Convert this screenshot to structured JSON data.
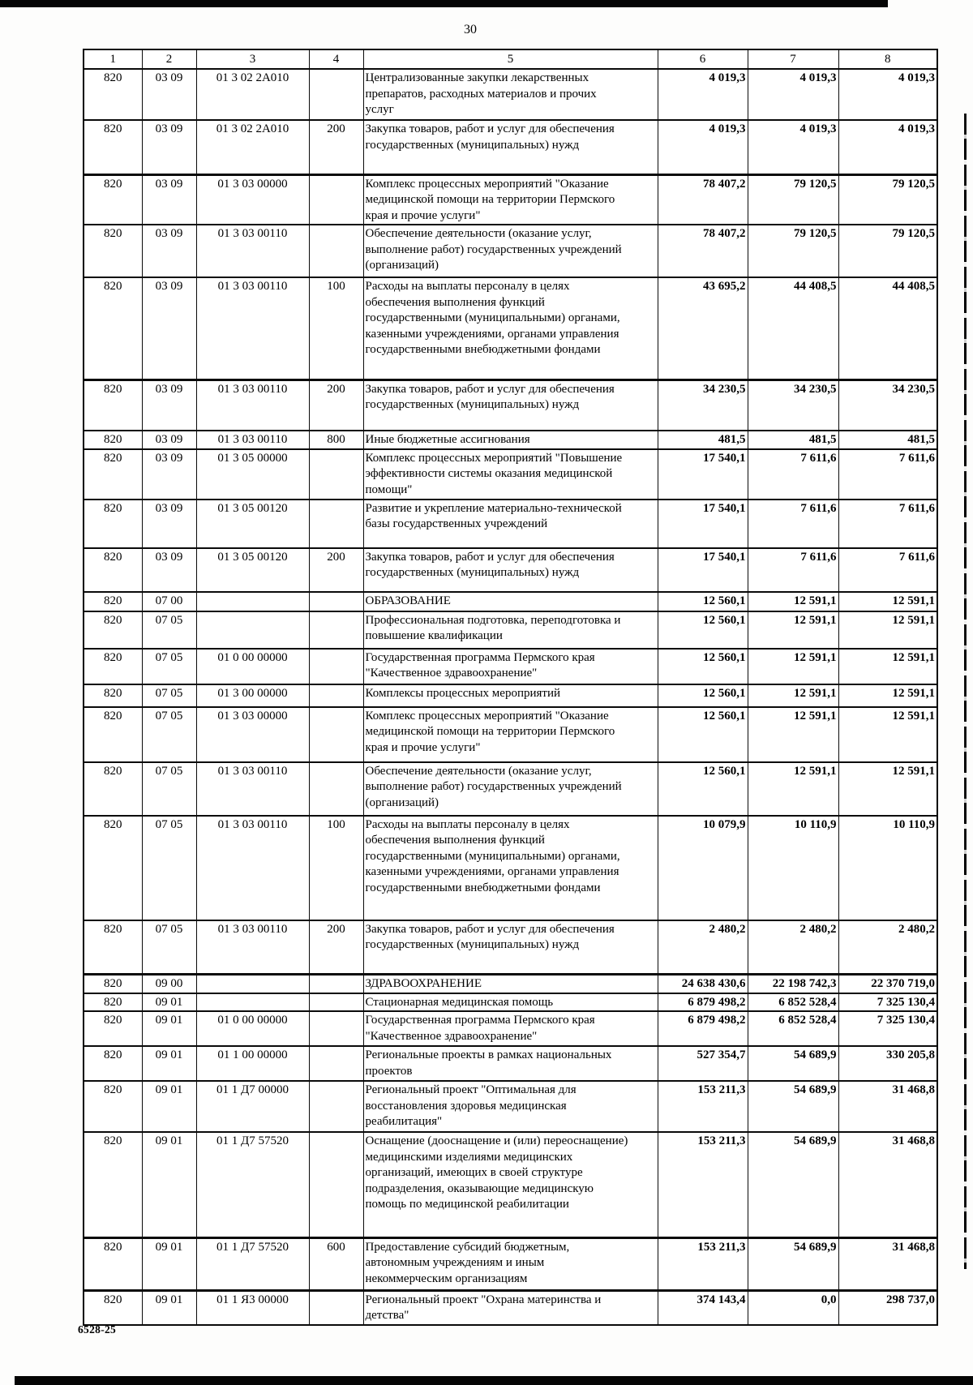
{
  "page": {
    "number": "30",
    "footer_code": "6528-25"
  },
  "table": {
    "headers": [
      "1",
      "2",
      "3",
      "4",
      "5",
      "6",
      "7",
      "8"
    ],
    "rows": [
      [
        "820",
        "03 09",
        "01 3 02 2А010",
        "",
        "Централизованные закупки лекарственных\nпрепаратов, расходных материалов и прочих\nуслуг",
        "4 019,3",
        "4 019,3",
        "4 019,3"
      ],
      [
        "820",
        "03 09",
        "01 3 02 2А010",
        "200",
        "Закупка товаров, работ и услуг для обеспечения\nгосударственных (муниципальных) нужд",
        "4 019,3",
        "4 019,3",
        "4 019,3"
      ],
      [
        "820",
        "03 09",
        "01 3 03 00000",
        "",
        "Комплекс процессных мероприятий \"Оказание\nмедицинской помощи на территории Пермского\nкрая и прочие услуги\"",
        "78 407,2",
        "79 120,5",
        "79 120,5"
      ],
      [
        "820",
        "03 09",
        "01 3 03 00110",
        "",
        "Обеспечение деятельности (оказание услуг,\nвыполнение работ) государственных учреждений\n(организаций)",
        "78 407,2",
        "79 120,5",
        "79 120,5"
      ],
      [
        "820",
        "03 09",
        "01 3 03 00110",
        "100",
        "Расходы на выплаты персоналу в целях\nобеспечения выполнения функций\nгосударственными (муниципальными) органами,\nказенными учреждениями, органами управления\nгосударственными внебюджетными фондами",
        "43 695,2",
        "44 408,5",
        "44 408,5"
      ],
      [
        "820",
        "03 09",
        "01 3 03 00110",
        "200",
        "Закупка товаров, работ и услуг для обеспечения\nгосударственных (муниципальных) нужд",
        "34 230,5",
        "34 230,5",
        "34 230,5"
      ],
      [
        "820",
        "03 09",
        "01 3 03 00110",
        "800",
        "Иные бюджетные ассигнования",
        "481,5",
        "481,5",
        "481,5"
      ],
      [
        "820",
        "03 09",
        "01 3 05 00000",
        "",
        "Комплекс процессных мероприятий \"Повышение\nэффективности системы оказания медицинской\nпомощи\"",
        "17 540,1",
        "7 611,6",
        "7 611,6"
      ],
      [
        "820",
        "03 09",
        "01 3 05 00120",
        "",
        "Развитие и укрепление материально-технической\nбазы государственных учреждений",
        "17 540,1",
        "7 611,6",
        "7 611,6"
      ],
      [
        "820",
        "03 09",
        "01 3 05 00120",
        "200",
        "Закупка товаров, работ и услуг для обеспечения\nгосударственных (муниципальных) нужд",
        "17 540,1",
        "7 611,6",
        "7 611,6"
      ],
      [
        "820",
        "07 00",
        "",
        "",
        "ОБРАЗОВАНИЕ",
        "12 560,1",
        "12 591,1",
        "12 591,1"
      ],
      [
        "820",
        "07 05",
        "",
        "",
        "Профессиональная подготовка, переподготовка и\nповышение квалификации",
        "12 560,1",
        "12 591,1",
        "12 591,1"
      ],
      [
        "820",
        "07 05",
        "01 0 00 00000",
        "",
        "Государственная программа Пермского края\n\"Качественное здравоохранение\"",
        "12 560,1",
        "12 591,1",
        "12 591,1"
      ],
      [
        "820",
        "07 05",
        "01 3 00 00000",
        "",
        "Комплексы процессных мероприятий",
        "12 560,1",
        "12 591,1",
        "12 591,1"
      ],
      [
        "820",
        "07 05",
        "01 3 03 00000",
        "",
        "Комплекс процессных мероприятий \"Оказание\nмедицинской помощи на территории Пермского\nкрая и прочие услуги\"",
        "12 560,1",
        "12 591,1",
        "12 591,1"
      ],
      [
        "820",
        "07 05",
        "01 3 03 00110",
        "",
        "Обеспечение деятельности (оказание услуг,\nвыполнение работ) государственных учреждений\n(организаций)",
        "12 560,1",
        "12 591,1",
        "12 591,1"
      ],
      [
        "820",
        "07 05",
        "01 3 03 00110",
        "100",
        "Расходы на выплаты персоналу в целях\nобеспечения выполнения функций\nгосударственными (муниципальными) органами,\nказенными учреждениями, органами управления\nгосударственными внебюджетными фондами",
        "10 079,9",
        "10 110,9",
        "10 110,9"
      ],
      [
        "820",
        "07 05",
        "01 3 03 00110",
        "200",
        "Закупка товаров, работ и услуг для обеспечения\nгосударственных (муниципальных) нужд",
        "2 480,2",
        "2 480,2",
        "2 480,2"
      ],
      [
        "820",
        "09 00",
        "",
        "",
        "ЗДРАВООХРАНЕНИЕ",
        "24 638 430,6",
        "22 198 742,3",
        "22 370 719,0"
      ],
      [
        "820",
        "09 01",
        "",
        "",
        "Стационарная медицинская помощь",
        "6 879 498,2",
        "6 852 528,4",
        "7 325 130,4"
      ],
      [
        "820",
        "09 01",
        "01 0 00 00000",
        "",
        "Государственная программа Пермского края\n\"Качественное здравоохранение\"",
        "6 879 498,2",
        "6 852 528,4",
        "7 325 130,4"
      ],
      [
        "820",
        "09 01",
        "01 1 00 00000",
        "",
        "Региональные проекты в рамках национальных\nпроектов",
        "527 354,7",
        "54 689,9",
        "330 205,8"
      ],
      [
        "820",
        "09 01",
        "01 1 Д7 00000",
        "",
        "Региональный проект \"Оптимальная для\nвосстановления здоровья медицинская\nреабилитация\"",
        "153 211,3",
        "54 689,9",
        "31 468,8"
      ],
      [
        "820",
        "09 01",
        "01 1 Д7 57520",
        "",
        "Оснащение (дооснащение и (или) переоснащение)\nмедицинскими изделиями медицинских\nорганизаций, имеющих в своей структуре\nподразделения, оказывающие медицинскую\nпомощь по медицинской реабилитации",
        "153 211,3",
        "54 689,9",
        "31 468,8"
      ],
      [
        "820",
        "09 01",
        "01 1 Д7 57520",
        "600",
        "Предоставление субсидий бюджетным,\nавтономным учреждениям и иным\nнекоммерческим организациям",
        "153 211,3",
        "54 689,9",
        "31 468,8"
      ],
      [
        "820",
        "09 01",
        "01 1 Я3 00000",
        "",
        "Региональный проект \"Охрана материнства и\nдетства\"",
        "374 143,4",
        "0,0",
        "298 737,0"
      ]
    ]
  }
}
